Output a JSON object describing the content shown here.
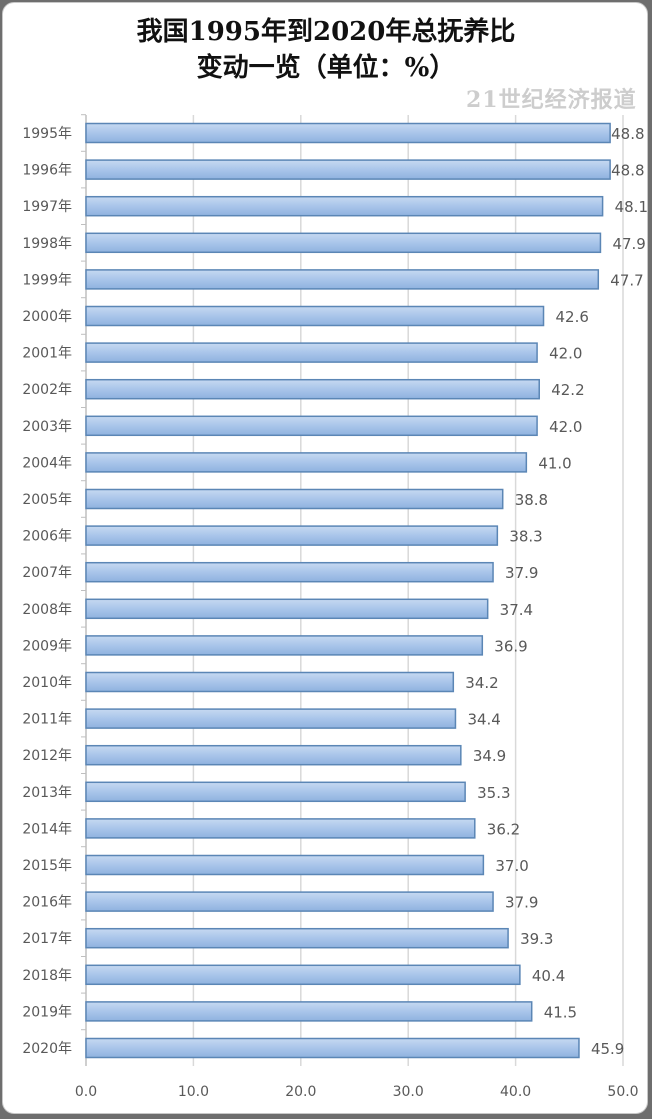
{
  "chart_data": {
    "type": "bar",
    "orientation": "horizontal",
    "title_line1": "我国1995年到2020年总抚养比",
    "title_line2": "变动一览（单位：%）",
    "categories": [
      "1995年",
      "1996年",
      "1997年",
      "1998年",
      "1999年",
      "2000年",
      "2001年",
      "2002年",
      "2003年",
      "2004年",
      "2005年",
      "2006年",
      "2007年",
      "2008年",
      "2009年",
      "2010年",
      "2011年",
      "2012年",
      "2013年",
      "2014年",
      "2015年",
      "2016年",
      "2017年",
      "2018年",
      "2019年",
      "2020年"
    ],
    "values": [
      48.8,
      48.8,
      48.1,
      47.9,
      47.7,
      42.6,
      42.0,
      42.2,
      42.0,
      41.0,
      38.8,
      38.3,
      37.9,
      37.4,
      36.9,
      34.2,
      34.4,
      34.9,
      35.3,
      36.2,
      37.0,
      37.9,
      39.3,
      40.4,
      41.5,
      45.9
    ],
    "xlim": [
      0,
      50
    ],
    "xticks": [
      "0.0",
      "10.0",
      "20.0",
      "30.0",
      "40.0",
      "50.0"
    ],
    "grid": true,
    "colors": {
      "bar_fill": "#9dbde6",
      "bar_stroke": "#5b86b5",
      "grid": "#d9d9d9",
      "label": "#595959"
    }
  },
  "watermark": "21世纪经济报道"
}
